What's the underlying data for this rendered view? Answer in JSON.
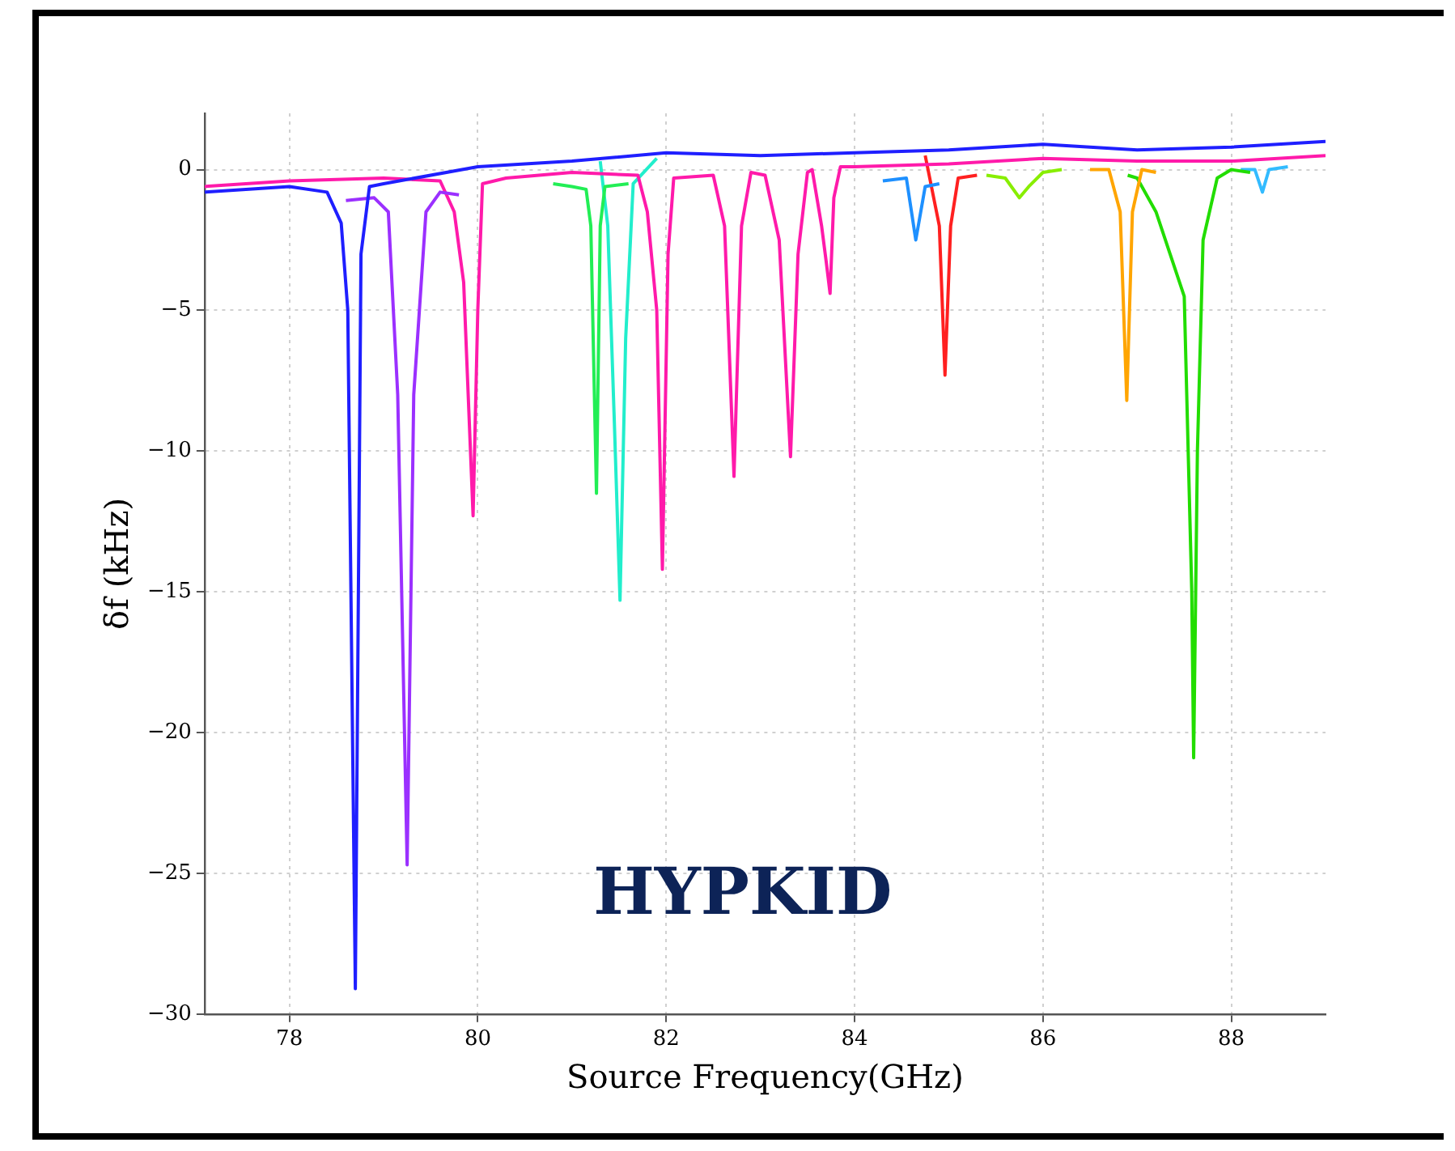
{
  "chart_data": {
    "type": "line",
    "xlabel": "Source Frequency(GHz)",
    "ylabel": "δf (kHz)",
    "annotations": [
      "HYPKID"
    ],
    "xlim": [
      77.1,
      89
    ],
    "xticks": [
      78,
      80,
      82,
      84,
      86,
      88
    ],
    "ylim": [
      -30,
      2
    ],
    "yticks": [
      -30,
      -25,
      -20,
      -15,
      -10,
      -5,
      0
    ],
    "grid": true,
    "legend": false,
    "marker": "none",
    "line_style": "solid",
    "series": [
      {
        "color": "#1f1fff",
        "x": [
          77.1,
          78,
          78.4,
          78.55,
          78.62,
          78.7,
          78.76,
          78.85,
          79,
          80,
          81,
          82,
          83,
          84,
          85,
          86,
          87,
          88,
          89
        ],
        "values": [
          -0.8,
          -0.6,
          -0.8,
          -1.9,
          -5,
          -29.1,
          -3,
          -0.6,
          -0.5,
          0.1,
          0.3,
          0.6,
          0.5,
          0.6,
          0.7,
          0.9,
          0.7,
          0.8,
          1.0
        ]
      },
      {
        "color": "#9b30ff",
        "x": [
          78.6,
          78.9,
          79.05,
          79.15,
          79.25,
          79.32,
          79.45,
          79.6,
          79.8
        ],
        "values": [
          -1.1,
          -1.0,
          -1.5,
          -8,
          -24.7,
          -8,
          -1.5,
          -0.8,
          -0.9
        ]
      },
      {
        "color": "#ff1aaa",
        "x": [
          77.1,
          78,
          79,
          79.6,
          79.75,
          79.85,
          79.95,
          80,
          80.05,
          80.3,
          81,
          81.7,
          81.8,
          81.9,
          81.96,
          82.02,
          82.08,
          82.5,
          82.62,
          82.72,
          82.8,
          82.9,
          83.05,
          83.2,
          83.32,
          83.4,
          83.5,
          83.55,
          83.65,
          83.7,
          83.74,
          83.78,
          83.85,
          84,
          85,
          86,
          87,
          88,
          89
        ],
        "values": [
          -0.6,
          -0.4,
          -0.3,
          -0.4,
          -1.5,
          -4,
          -12.3,
          -5,
          -0.5,
          -0.3,
          -0.1,
          -0.2,
          -1.5,
          -5,
          -14.2,
          -3,
          -0.3,
          -0.2,
          -2,
          -10.9,
          -2,
          -0.1,
          -0.2,
          -2.5,
          -10.2,
          -3,
          -0.1,
          0,
          -2,
          -3.3,
          -4.4,
          -1,
          0.1,
          0.1,
          0.2,
          0.4,
          0.3,
          0.3,
          0.5
        ]
      },
      {
        "color": "#22ee55",
        "x": [
          80.8,
          81,
          81.15,
          81.2,
          81.26,
          81.3,
          81.35,
          81.6
        ],
        "values": [
          -0.5,
          -0.6,
          -0.7,
          -2,
          -11.5,
          -2,
          -0.6,
          -0.5
        ]
      },
      {
        "color": "#22eecc",
        "x": [
          81.3,
          81.38,
          81.45,
          81.51,
          81.57,
          81.65,
          81.9
        ],
        "values": [
          0.3,
          -2,
          -9,
          -15.3,
          -6,
          -0.5,
          0.4
        ]
      },
      {
        "color": "#1e90ff",
        "x": [
          84.3,
          84.55,
          84.65,
          84.75,
          84.9
        ],
        "values": [
          -0.4,
          -0.3,
          -2.5,
          -0.6,
          -0.5
        ]
      },
      {
        "color": "#ff2020",
        "x": [
          84.75,
          84.9,
          84.96,
          85.02,
          85.1,
          85.3
        ],
        "values": [
          0.5,
          -2,
          -7.3,
          -2,
          -0.3,
          -0.2
        ]
      },
      {
        "color": "#88ee00",
        "x": [
          85.4,
          85.6,
          85.75,
          85.85,
          86,
          86.2
        ],
        "values": [
          -0.2,
          -0.3,
          -1,
          -0.6,
          -0.1,
          0
        ]
      },
      {
        "color": "#ffa500",
        "x": [
          86.5,
          86.7,
          86.82,
          86.89,
          86.95,
          87.05,
          87.2
        ],
        "values": [
          0,
          0,
          -1.5,
          -8.2,
          -1.5,
          0,
          -0.1
        ]
      },
      {
        "color": "#22dd00",
        "x": [
          86.9,
          87,
          87.2,
          87.35,
          87.5,
          87.58,
          87.6,
          87.64,
          87.7,
          87.85,
          88,
          88.2
        ],
        "values": [
          -0.2,
          -0.3,
          -1.5,
          -3,
          -4.5,
          -15,
          -20.9,
          -10,
          -2.5,
          -0.3,
          0,
          -0.1
        ]
      },
      {
        "color": "#33bbff",
        "x": [
          88.1,
          88.25,
          88.33,
          88.4,
          88.6
        ],
        "values": [
          0,
          0,
          -0.8,
          0,
          0.1
        ]
      }
    ]
  }
}
